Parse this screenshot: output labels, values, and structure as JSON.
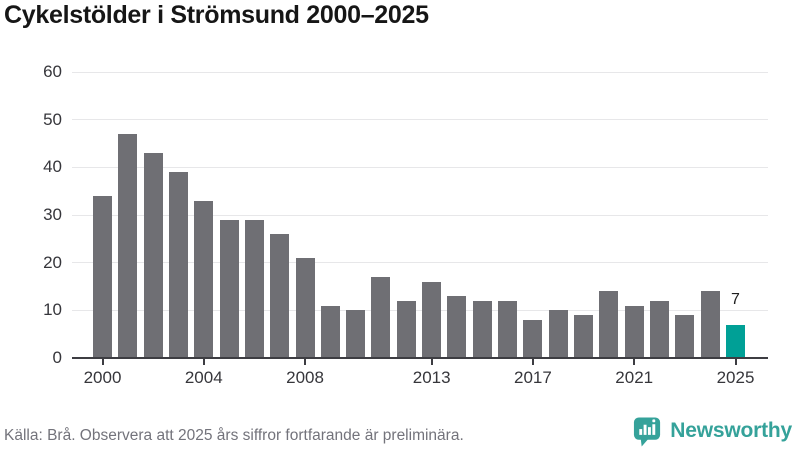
{
  "title": "Cykelstölder i Strömsund 2000–2025",
  "footer": {
    "source_note": "Källa: Brå. Observera att 2025 års siffror fortfarande är preliminära.",
    "brand": "Newsworthy"
  },
  "colors": {
    "bar": "#6f6f74",
    "highlight": "#00a096",
    "brand_teal": "#35a29a",
    "grid": "#e7e7e9",
    "axis": "#3d3d42",
    "title_text": "#161616",
    "tick_text": "#36363b",
    "footer_text": "#73737b"
  },
  "chart_data": {
    "type": "bar",
    "title": "Cykelstölder i Strömsund 2000–2025",
    "xlabel": "",
    "ylabel": "",
    "categories": [
      2000,
      2001,
      2002,
      2003,
      2004,
      2005,
      2006,
      2007,
      2008,
      2009,
      2010,
      2011,
      2012,
      2013,
      2014,
      2015,
      2016,
      2017,
      2018,
      2019,
      2020,
      2021,
      2022,
      2023,
      2024,
      2025
    ],
    "values": [
      34,
      47,
      43,
      39,
      33,
      29,
      29,
      26,
      21,
      11,
      10,
      17,
      12,
      16,
      13,
      12,
      12,
      8,
      10,
      9,
      14,
      11,
      12,
      9,
      14,
      7
    ],
    "highlight_index": 25,
    "bar_label": {
      "index": 25,
      "text": "7"
    },
    "x_tick_labels": [
      "2000",
      "2004",
      "2008",
      "2013",
      "2017",
      "2021",
      "2025"
    ],
    "x_tick_indices": [
      0,
      4,
      8,
      13,
      17,
      21,
      25
    ],
    "y_ticks": [
      0,
      10,
      20,
      30,
      40,
      50,
      60
    ],
    "ylim": [
      0,
      60
    ],
    "grid": "horizontal",
    "legend": "none"
  }
}
